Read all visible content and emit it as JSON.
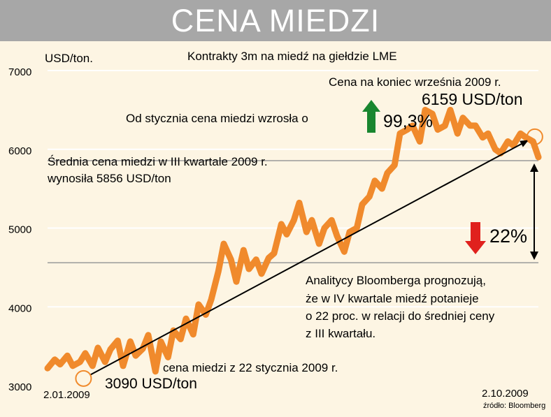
{
  "title": "CENA MIEDZI",
  "subtitle": "Kontrakty 3m na miedź na giełdzie LME",
  "colors": {
    "line": "#f08a2c",
    "header_bg": "#a7a7a7",
    "background": "#fdf5e3",
    "up_arrow": "#19862f",
    "down_arrow": "#e0211d",
    "reference": "#9a9a9a"
  },
  "annotations": {
    "end_price_title": "Cena na koniec września 2009 r.",
    "end_price_value": "6159 USD/ton",
    "growth_text": "Od stycznia cena miedzi wzrosła o",
    "growth_value": "99,3%",
    "avg_line1": "Średnia cena miedzi w III kwartale 2009 r.",
    "avg_line2": "wynosiła 5856 USD/ton",
    "drop_value": "22%",
    "forecast_lines": [
      "Analitycy Bloomberga prognozują,",
      "że w IV kwartale miedź potanieje",
      "o 22 proc. w relacji do średniej ceny",
      "z III kwartału."
    ],
    "start_caption": "cena miedzi z 22 stycznia 2009 r.",
    "start_value": "3090 USD/ton",
    "source": "źródło: Bloomberg"
  },
  "chart_data": {
    "type": "line",
    "title": "CENA MIEDZI",
    "subtitle": "Kontrakty 3m na miedź na giełdzie LME",
    "ylabel": "USD/ton.",
    "xlabel": "",
    "ylim": [
      3000,
      7000
    ],
    "xlim": [
      "2009-01-02",
      "2009-10-02"
    ],
    "x_tick_labels": [
      "2.01.2009",
      "2.10.2009"
    ],
    "y_ticks": [
      {
        "value": 3000,
        "label": "3000"
      },
      {
        "value": 4000,
        "label": "4000"
      },
      {
        "value": 5000,
        "label": "5000"
      },
      {
        "value": 6000,
        "label": "6000"
      },
      {
        "value": 7000,
        "label": "7000"
      }
    ],
    "grid": true,
    "reference_lines": [
      5856,
      4560
    ],
    "highlight_points": [
      {
        "x": "2009-01-22",
        "y": 3090
      },
      {
        "x": "2009-09-30",
        "y": 6159
      }
    ],
    "series": [
      {
        "x": [
          "2009-01-02",
          "2009-01-06",
          "2009-01-09",
          "2009-01-13",
          "2009-01-16",
          "2009-01-20",
          "2009-01-23",
          "2009-01-27",
          "2009-01-30",
          "2009-02-03",
          "2009-02-06",
          "2009-02-10",
          "2009-02-13",
          "2009-02-17",
          "2009-02-20",
          "2009-02-24",
          "2009-02-27",
          "2009-03-03",
          "2009-03-06",
          "2009-03-10",
          "2009-03-13",
          "2009-03-17",
          "2009-03-20",
          "2009-03-24",
          "2009-03-27",
          "2009-03-31",
          "2009-04-03",
          "2009-04-07",
          "2009-04-10",
          "2009-04-14",
          "2009-04-17",
          "2009-04-21",
          "2009-04-24",
          "2009-04-28",
          "2009-05-01",
          "2009-05-05",
          "2009-05-08",
          "2009-05-12",
          "2009-05-15",
          "2009-05-19",
          "2009-05-22",
          "2009-05-26",
          "2009-05-29",
          "2009-06-02",
          "2009-06-05",
          "2009-06-09",
          "2009-06-12",
          "2009-06-16",
          "2009-06-19",
          "2009-06-23",
          "2009-06-26",
          "2009-06-30",
          "2009-07-03",
          "2009-07-07",
          "2009-07-10",
          "2009-07-14",
          "2009-07-17",
          "2009-07-21",
          "2009-07-24",
          "2009-07-28",
          "2009-07-31",
          "2009-08-04",
          "2009-08-07",
          "2009-08-11",
          "2009-08-14",
          "2009-08-18",
          "2009-08-21",
          "2009-08-25",
          "2009-08-28",
          "2009-09-01",
          "2009-09-04",
          "2009-09-08",
          "2009-09-11",
          "2009-09-15",
          "2009-09-18",
          "2009-09-22",
          "2009-09-25",
          "2009-09-29",
          "2009-10-02"
        ],
        "values": [
          3220,
          3330,
          3270,
          3380,
          3250,
          3300,
          3410,
          3250,
          3480,
          3300,
          3460,
          3570,
          3250,
          3560,
          3380,
          3470,
          3640,
          3180,
          3560,
          3360,
          3700,
          3590,
          3850,
          3650,
          4030,
          3900,
          4090,
          4450,
          4800,
          4600,
          4320,
          4720,
          4480,
          4600,
          4420,
          4620,
          4680,
          5050,
          4920,
          5100,
          5320,
          4950,
          5100,
          4800,
          5000,
          5100,
          4900,
          4700,
          4950,
          5000,
          5300,
          5400,
          5600,
          5500,
          5700,
          5800,
          6200,
          6250,
          6300,
          6100,
          6500,
          6450,
          6250,
          6300,
          6500,
          6200,
          6400,
          6300,
          6300,
          6150,
          6200,
          6000,
          5950,
          6100,
          6050,
          6200,
          6150,
          6100,
          5900
        ]
      }
    ]
  }
}
